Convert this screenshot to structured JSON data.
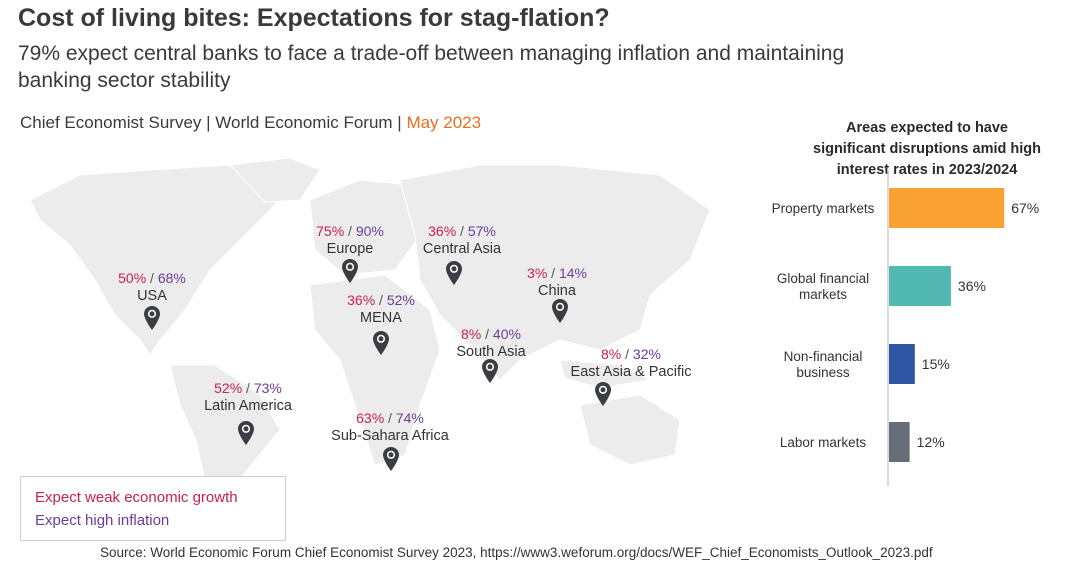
{
  "title": "Cost of living bites: Expectations for stag-flation?",
  "subtitle": "79% expect central banks to face a trade-off between managing inflation and maintaining banking sector stability",
  "source_line": {
    "prefix": "Chief Economist Survey | World Economic Forum |",
    "date": "May 2023"
  },
  "map": {
    "sep": "/",
    "regions": [
      {
        "name": "USA",
        "weak": "50%",
        "high": "68%"
      },
      {
        "name": "Europe",
        "weak": "75%",
        "high": "90%"
      },
      {
        "name": "Central Asia",
        "weak": "36%",
        "high": "57%"
      },
      {
        "name": "China",
        "weak": "3%",
        "high": "14%"
      },
      {
        "name": "MENA",
        "weak": "36%",
        "high": "52%"
      },
      {
        "name": "South Asia",
        "weak": "8%",
        "high": "40%"
      },
      {
        "name": "East Asia & Pacific",
        "weak": "8%",
        "high": "32%"
      },
      {
        "name": "Latin America",
        "weak": "52%",
        "high": "73%"
      },
      {
        "name": "Sub-Sahara Africa",
        "weak": "63%",
        "high": "74%"
      }
    ]
  },
  "legend": {
    "weak_label": "Expect weak economic growth",
    "high_label": "Expect high inflation"
  },
  "footnote": "Source: World Economic Forum Chief Economist Survey 2023, https://www3.weforum.org/docs/WEF_Chief_Economists_Outlook_2023.pdf",
  "colors": {
    "weak": "#c81e5a",
    "high": "#6a3d9a",
    "accent": "#e8701e"
  },
  "chart_data": {
    "type": "bar",
    "orientation": "horizontal",
    "title": "Areas expected to have significant disruptions amid high interest rates in 2023/2024",
    "title_lines": [
      "Areas expected to have",
      "significant disruptions amid high",
      "interest rates in 2023/2024"
    ],
    "categories": [
      "Property markets",
      "Global financial markets",
      "Non-financial business",
      "Labor markets"
    ],
    "category_lines": [
      [
        "Property markets"
      ],
      [
        "Global financial",
        "markets"
      ],
      [
        "Non-financial",
        "business"
      ],
      [
        "Labor markets"
      ]
    ],
    "values": [
      67,
      36,
      15,
      12
    ],
    "value_labels": [
      "67%",
      "36%",
      "15%",
      "12%"
    ],
    "colors": [
      "#f9a233",
      "#52b9b0",
      "#2f56a5",
      "#666f78"
    ],
    "xlim": [
      0,
      100
    ],
    "xlabel": "",
    "ylabel": ""
  }
}
